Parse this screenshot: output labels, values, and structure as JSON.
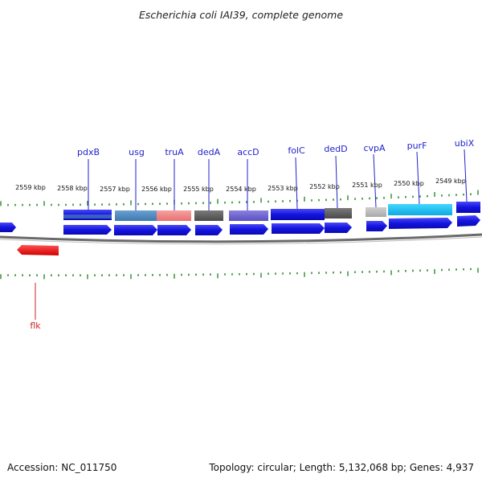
{
  "title": "Escherichia coli IAI39, complete genome",
  "accession": "Accession: NC_011750",
  "summary": "Topology: circular; Length: 5,132,068 bp; Genes: 4,937",
  "kbp_labels": [
    {
      "text": "2559 kbp",
      "pos": 0
    },
    {
      "text": "2558 kbp",
      "pos": 1
    },
    {
      "text": "2557 kbp",
      "pos": 2
    },
    {
      "text": "2556 kbp",
      "pos": 3
    },
    {
      "text": "2555 kbp",
      "pos": 4
    },
    {
      "text": "2554 kbp",
      "pos": 5
    },
    {
      "text": "2553 kbp",
      "pos": 6
    },
    {
      "text": "2552 kbp",
      "pos": 7
    },
    {
      "text": "2551 kbp",
      "pos": 8
    },
    {
      "text": "2550 kbp",
      "pos": 9
    },
    {
      "text": "2549 kbp",
      "pos": 10
    }
  ],
  "gene_labels": [
    {
      "name": "pdxB",
      "color": "#2222cc"
    },
    {
      "name": "usg",
      "color": "#2222cc"
    },
    {
      "name": "truA",
      "color": "#2222cc"
    },
    {
      "name": "dedA",
      "color": "#2222cc"
    },
    {
      "name": "accD",
      "color": "#2222cc"
    },
    {
      "name": "folC",
      "color": "#2222cc"
    },
    {
      "name": "dedD",
      "color": "#2222cc"
    },
    {
      "name": "cvpA",
      "color": "#2222cc"
    },
    {
      "name": "purF",
      "color": "#2222cc"
    },
    {
      "name": "ubiX",
      "color": "#2222cc"
    },
    {
      "name": "flk",
      "color": "#cc2222"
    }
  ],
  "colors": {
    "forward_gene": "#1a1ae6",
    "reverse_gene": "#ee1111",
    "backbone": "#888888",
    "tick": "#2a8a2a"
  }
}
